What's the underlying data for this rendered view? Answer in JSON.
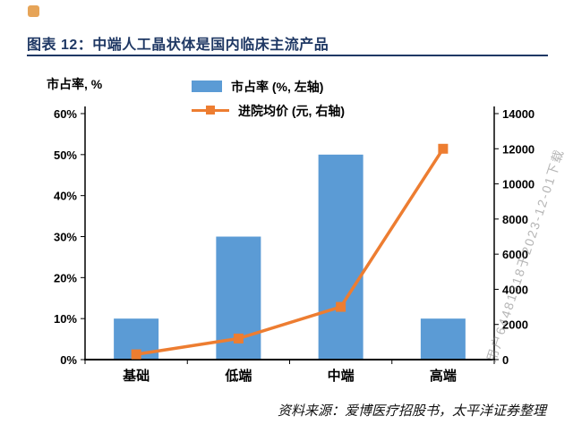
{
  "page": {
    "title": "图表 12：中端人工晶状体是国内临床主流产品",
    "source": "资料来源：爱博医疗招股书，太平洋证券整理",
    "watermark": "用户64481318于2023-12-01下载",
    "accent_color": "#1F3864"
  },
  "chart_data": {
    "type": "bar",
    "subtype": "bar+line dual axis",
    "title": "中端人工晶状体是国内临床主流产品",
    "categories": [
      "基础",
      "低端",
      "中端",
      "高端"
    ],
    "series": [
      {
        "name": "市占率 (%, 左轴)",
        "type": "bar",
        "axis": "left",
        "values": [
          10,
          30,
          50,
          10
        ],
        "color": "#5B9BD5"
      },
      {
        "name": "进院均价 (元, 右轴)",
        "type": "line",
        "axis": "right",
        "values": [
          300,
          1200,
          3000,
          12000
        ],
        "color": "#ED7D31"
      }
    ],
    "left_axis": {
      "title": "市占率, %",
      "min": 0,
      "max": 60,
      "step": 10,
      "format": "percent"
    },
    "right_axis": {
      "min": 0,
      "max": 14000,
      "step": 2000
    },
    "grid": false,
    "legend_position": "top"
  }
}
